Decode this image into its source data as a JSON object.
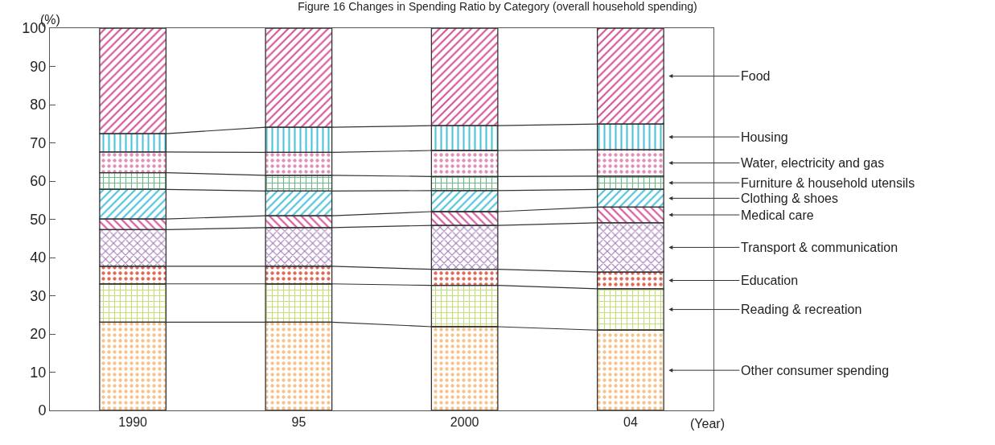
{
  "chart_data": {
    "type": "bar",
    "stacked": true,
    "title": "Figure 16 Changes in Spending Ratio by Category (overall household spending)",
    "xlabel": "(Year)",
    "ylabel": "(%)",
    "categories": [
      "1990",
      "95",
      "2000",
      "04"
    ],
    "ylim": [
      0,
      100
    ],
    "yticks": [
      0,
      10,
      20,
      30,
      40,
      50,
      60,
      70,
      80,
      90,
      100
    ],
    "grid": false,
    "legend": false,
    "series": [
      {
        "name": "Other consumer spending",
        "color": "#f8c38a",
        "values": [
          23.1,
          23.1,
          21.9,
          21.0
        ]
      },
      {
        "name": "Reading & recreation",
        "color": "#c5de7a",
        "values": [
          10.0,
          10.0,
          10.8,
          10.8
        ]
      },
      {
        "name": "Education",
        "color": "#e06a5a",
        "values": [
          4.6,
          4.6,
          4.2,
          4.4
        ]
      },
      {
        "name": "Transport & communication",
        "color": "#a37bb8",
        "values": [
          9.6,
          10.1,
          11.5,
          12.9
        ]
      },
      {
        "name": "Medical care",
        "color": "#d6559a",
        "values": [
          2.8,
          3.1,
          3.6,
          4.1
        ]
      },
      {
        "name": "Clothing & shoes",
        "color": "#4ec3dc",
        "values": [
          7.7,
          6.5,
          5.5,
          4.6
        ]
      },
      {
        "name": "Furniture & household utensils",
        "color": "#6db98a",
        "values": [
          4.4,
          4.1,
          3.7,
          3.5
        ]
      },
      {
        "name": "Water, electricity and gas",
        "color": "#e48fb8",
        "values": [
          5.4,
          6.0,
          6.8,
          6.9
        ]
      },
      {
        "name": "Housing",
        "color": "#4ec3dc",
        "values": [
          4.8,
          6.6,
          6.5,
          6.7
        ]
      },
      {
        "name": "Food",
        "color": "#d6559a",
        "values": [
          27.6,
          25.9,
          25.5,
          25.1
        ]
      }
    ]
  }
}
